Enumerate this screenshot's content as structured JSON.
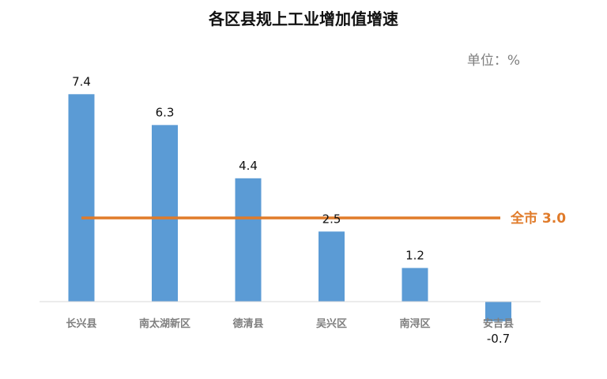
{
  "chart_data": {
    "type": "bar",
    "title": "各区县规上工业增加值增速",
    "unit_label": "单位：%",
    "categories": [
      "长兴县",
      "南太湖新区",
      "德清县",
      "吴兴区",
      "南浔区",
      "安吉县"
    ],
    "values": [
      7.4,
      6.3,
      4.4,
      2.5,
      1.2,
      -0.7
    ],
    "data_labels": [
      "7.4",
      "6.3",
      "4.4",
      "2.5",
      "1.2",
      "-0.7"
    ],
    "reference_line": {
      "value": 3.0,
      "label": "全市 3.0"
    },
    "ylim": [
      -1,
      8
    ],
    "grid": false,
    "legend": "none",
    "colors": {
      "bar": "#5B9BD5",
      "reference": "#E07B2A",
      "axis": "#D9D9D9"
    }
  }
}
